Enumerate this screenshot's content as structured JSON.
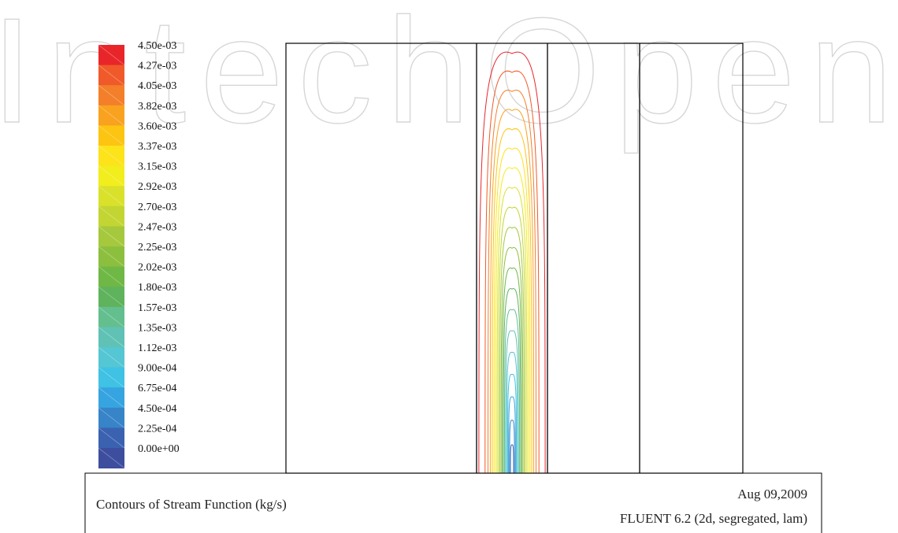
{
  "chart_data": {
    "type": "contour",
    "title": "Contours of Stream Function (kg/s)",
    "date": "Aug 09,2009",
    "software": "FLUENT 6.2 (2d, segregated, lam)",
    "colorbar": {
      "labels": [
        "4.50e-03",
        "4.27e-03",
        "4.05e-03",
        "3.82e-03",
        "3.60e-03",
        "3.37e-03",
        "3.15e-03",
        "2.92e-03",
        "2.70e-03",
        "2.47e-03",
        "2.25e-03",
        "2.02e-03",
        "1.80e-03",
        "1.57e-03",
        "1.35e-03",
        "1.12e-03",
        "9.00e-04",
        "6.75e-04",
        "4.50e-04",
        "2.25e-04",
        "0.00e+00"
      ],
      "min": 0.0,
      "max": 0.0045,
      "colors": [
        "#e8262a",
        "#f05a2a",
        "#f47f2a",
        "#f9a21f",
        "#fdc412",
        "#fde31a",
        "#f2ed1d",
        "#d9e12a",
        "#c3d533",
        "#a6c83d",
        "#8dbf3f",
        "#6fb845",
        "#5eb35c",
        "#64bf8e",
        "#5fc2b4",
        "#55c6d3",
        "#3fc2e4",
        "#36a4e0",
        "#3784c8",
        "#3a62b0",
        "#3e4e9e"
      ]
    },
    "contour_levels": [
      0.000225,
      0.00045,
      0.000675,
      0.0009,
      0.001125,
      0.00135,
      0.001575,
      0.0018,
      0.002025,
      0.00225,
      0.002475,
      0.0027,
      0.002925,
      0.00315,
      0.003375,
      0.0036,
      0.003825,
      0.00405,
      0.004275,
      0.0045
    ]
  },
  "watermark": "IntechOpen"
}
